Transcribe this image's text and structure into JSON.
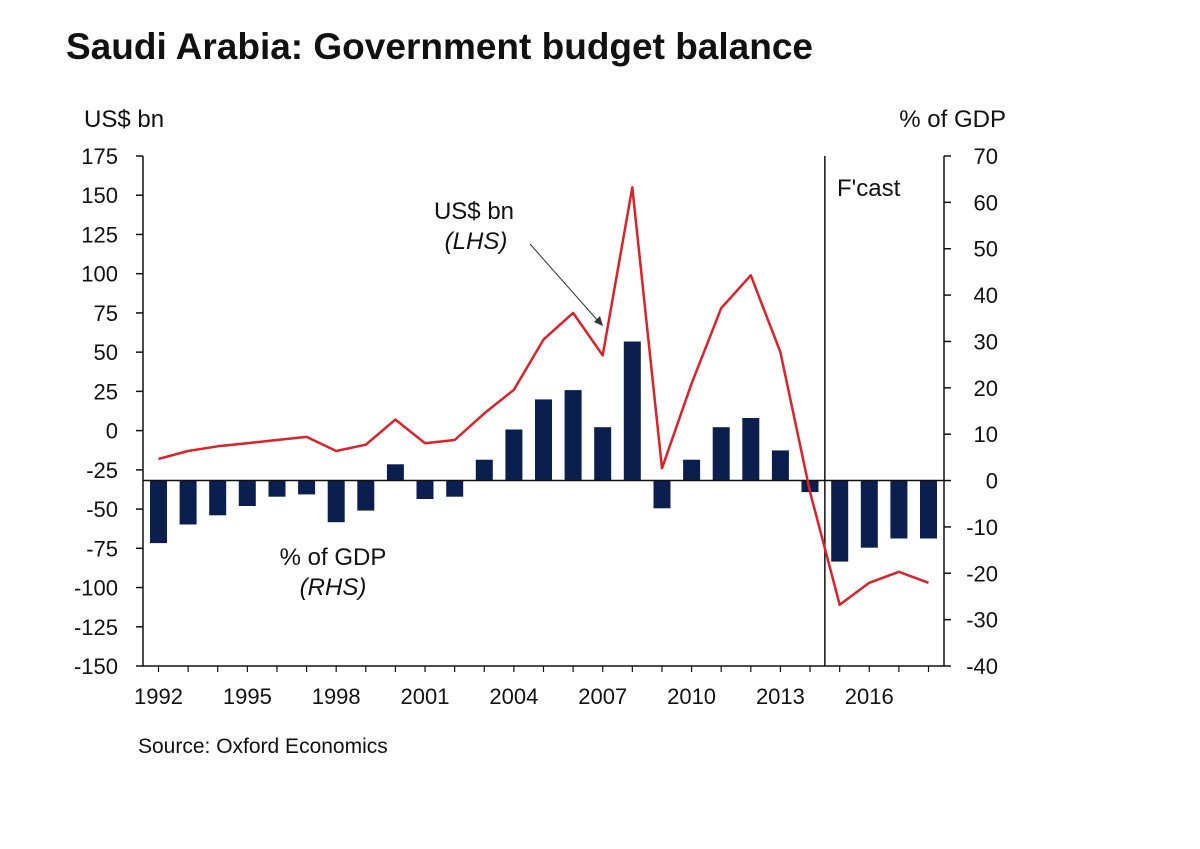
{
  "chart_data": {
    "type": "bar+line",
    "title": "Saudi Arabia: Government budget balance",
    "source": "Source: Oxford Economics",
    "left_axis": {
      "label": "US$ bn",
      "min": -150,
      "max": 175,
      "ticks": [
        175,
        150,
        125,
        100,
        75,
        50,
        25,
        0,
        -25,
        -50,
        -75,
        -100,
        -125,
        -150
      ]
    },
    "right_axis": {
      "label": "% of GDP",
      "min": -40,
      "max": 70,
      "ticks": [
        70,
        60,
        50,
        40,
        30,
        20,
        10,
        0,
        -10,
        -20,
        -30,
        -40
      ]
    },
    "x_ticks": [
      "1992",
      "1995",
      "1998",
      "2001",
      "2004",
      "2007",
      "2010",
      "2013",
      "2016"
    ],
    "years": [
      1992,
      1993,
      1994,
      1995,
      1996,
      1997,
      1998,
      1999,
      2000,
      2001,
      2002,
      2003,
      2004,
      2005,
      2006,
      2007,
      2008,
      2009,
      2010,
      2011,
      2012,
      2013,
      2014,
      2015,
      2016,
      2017,
      2018
    ],
    "series": [
      {
        "name": "% of GDP (RHS)",
        "type": "bar",
        "axis": "right",
        "color": "#0b1f4f",
        "values": [
          -13.5,
          -9.5,
          -7.5,
          -5.5,
          -3.5,
          -3,
          -9,
          -6.5,
          3.5,
          -4,
          -3.5,
          4.5,
          11,
          17.5,
          19.5,
          11.5,
          30,
          -6,
          4.5,
          11.5,
          13.5,
          6.5,
          -2.5,
          -17.5,
          -14.5,
          -12.5,
          -12.5
        ]
      },
      {
        "name": "US$ bn (LHS)",
        "type": "line",
        "axis": "left",
        "color": "#d9222a",
        "values": [
          -18,
          -13,
          -10,
          -8,
          -6,
          -4,
          -13,
          -9,
          7,
          -8,
          -6,
          11,
          26,
          58,
          75,
          48,
          155,
          -24,
          30,
          78,
          99,
          50,
          -39,
          -111,
          -97,
          -90,
          -97
        ]
      }
    ],
    "forecast_divider_year": 2014.5,
    "forecast_label": "F'cast",
    "annotations": [
      {
        "text": "US$ bn",
        "subtext": "(LHS)"
      },
      {
        "text": "% of GDP",
        "subtext": "(RHS)"
      }
    ]
  }
}
